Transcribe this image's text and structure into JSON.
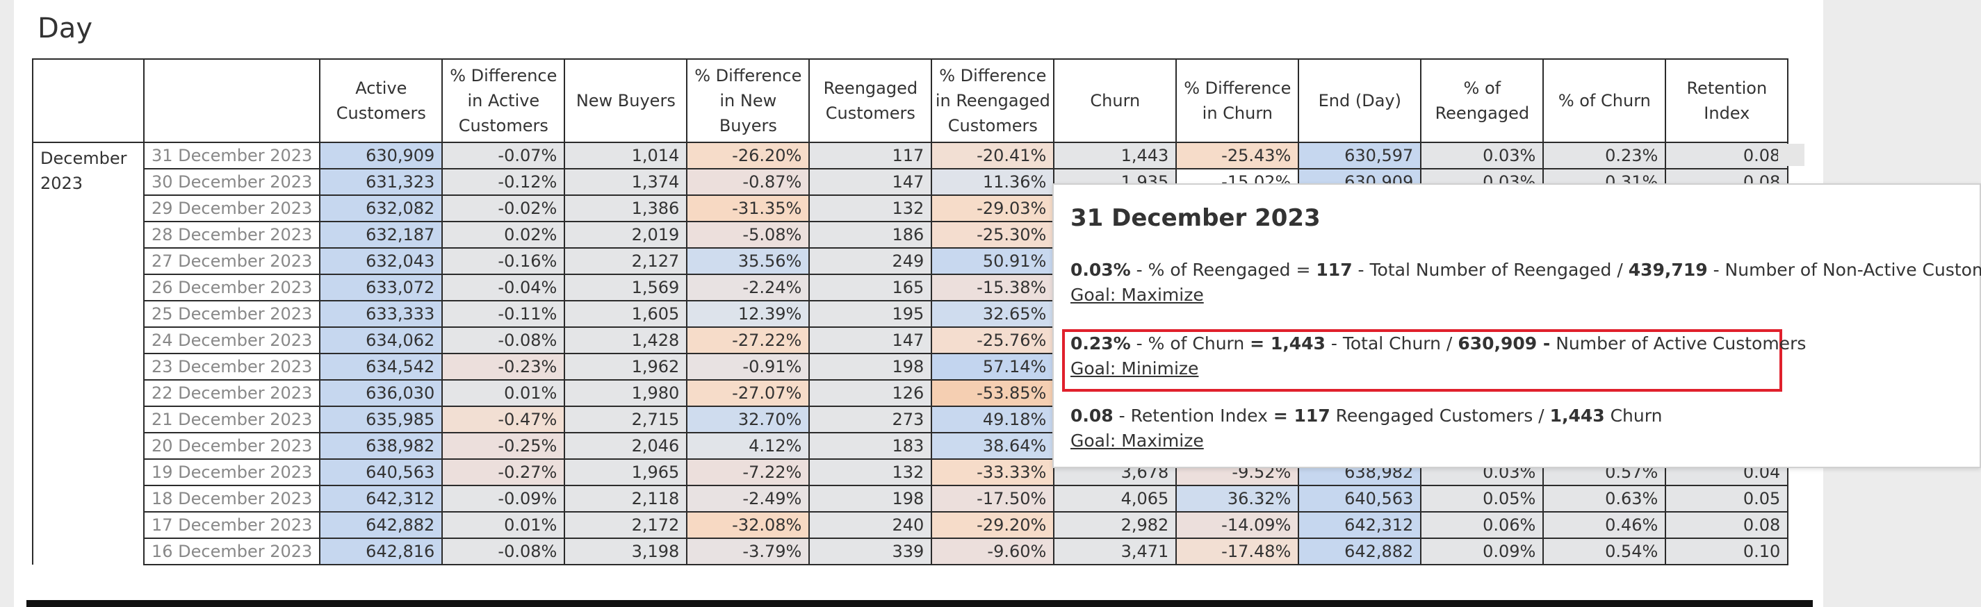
{
  "view": {
    "title": "Day"
  },
  "month_label": "December 2023",
  "headers": [
    "Active Customers",
    "% Difference in Active Customers",
    "New Buyers",
    "% Difference in New Buyers",
    "Reengaged Customers",
    "% Difference in Reengaged Customers",
    "Churn",
    "% Difference in Churn",
    "End (Day)",
    "% of Reengaged",
    "% of Churn",
    "Retention Index"
  ],
  "rows": [
    {
      "date": "31 December 2023",
      "cells": [
        "630,909",
        "-0.07%",
        "1,014",
        "-26.20%",
        "117",
        "-20.41%",
        "1,443",
        "-25.43%",
        "630,597",
        "0.03%",
        "0.23%",
        "0.08"
      ],
      "tints": [
        "",
        "",
        "",
        "#f6dcc9",
        "",
        "#f2dfd3",
        "",
        "#f6dcc9",
        "",
        "",
        "",
        ""
      ]
    },
    {
      "date": "30 December 2023",
      "cells": [
        "631,323",
        "-0.12%",
        "1,374",
        "-0.87%",
        "147",
        "11.36%",
        "1,935",
        "-15.02%",
        "630,909",
        "0.03%",
        "0.31%",
        "0.08"
      ],
      "tints": [
        "",
        "",
        "",
        "#ecdfdc",
        "",
        "#dfe3ea",
        "",
        "",
        "",
        "",
        "",
        ""
      ]
    },
    {
      "date": "29 December 2023",
      "cells": [
        "632,082",
        "-0.02%",
        "1,386",
        "-31.35%",
        "132",
        "-29.03%",
        "",
        "",
        "",
        "",
        "",
        ""
      ],
      "tints": [
        "",
        "",
        "",
        "#f7d9c3",
        "",
        "#f6dcc9",
        "",
        "",
        "",
        "",
        "",
        ""
      ]
    },
    {
      "date": "28 December 2023",
      "cells": [
        "632,187",
        "0.02%",
        "2,019",
        "-5.08%",
        "186",
        "-25.30%",
        "",
        "",
        "",
        "",
        "",
        ""
      ],
      "tints": [
        "",
        "",
        "",
        "#ecdfdc",
        "",
        "#f4ddcf",
        "",
        "",
        "",
        "",
        "",
        ""
      ]
    },
    {
      "date": "27 December 2023",
      "cells": [
        "632,043",
        "-0.16%",
        "2,127",
        "35.56%",
        "249",
        "50.91%",
        "",
        "",
        "",
        "",
        "",
        ""
      ],
      "tints": [
        "",
        "",
        "",
        "#cfdcee",
        "",
        "#c8d8ef",
        "",
        "",
        "",
        "",
        "",
        ""
      ]
    },
    {
      "date": "26 December 2023",
      "cells": [
        "633,072",
        "-0.04%",
        "1,569",
        "-2.24%",
        "165",
        "-15.38%",
        "",
        "",
        "",
        "",
        "",
        ""
      ],
      "tints": [
        "",
        "",
        "",
        "#e8e2e2",
        "",
        "#ecdfdc",
        "",
        "",
        "",
        "",
        "",
        ""
      ]
    },
    {
      "date": "25 December 2023",
      "cells": [
        "633,333",
        "-0.11%",
        "1,605",
        "12.39%",
        "195",
        "32.65%",
        "",
        "",
        "",
        "",
        "",
        ""
      ],
      "tints": [
        "",
        "",
        "",
        "#dde3eb",
        "",
        "#cfdcee",
        "",
        "",
        "",
        "",
        "",
        ""
      ]
    },
    {
      "date": "24 December 2023",
      "cells": [
        "634,062",
        "-0.08%",
        "1,428",
        "-27.22%",
        "147",
        "-25.76%",
        "",
        "",
        "",
        "",
        "",
        ""
      ],
      "tints": [
        "",
        "",
        "",
        "#f6dcc9",
        "",
        "#f4ddcf",
        "",
        "",
        "",
        "",
        "",
        ""
      ]
    },
    {
      "date": "23 December 2023",
      "cells": [
        "634,542",
        "-0.23%",
        "1,962",
        "-0.91%",
        "198",
        "57.14%",
        "",
        "",
        "",
        "",
        "",
        ""
      ],
      "tints": [
        "",
        "#ecdfdc",
        "",
        "#e8e2e2",
        "",
        "#c3d5ef",
        "",
        "",
        "",
        "",
        "",
        ""
      ]
    },
    {
      "date": "22 December 2023",
      "cells": [
        "636,030",
        "0.01%",
        "1,980",
        "-27.07%",
        "126",
        "-53.85%",
        "",
        "",
        "",
        "",
        "",
        ""
      ],
      "tints": [
        "",
        "",
        "",
        "#f6dcc9",
        "",
        "#f5cfb2",
        "",
        "",
        "",
        "",
        "",
        ""
      ]
    },
    {
      "date": "21 December 2023",
      "cells": [
        "635,985",
        "-0.47%",
        "2,715",
        "32.70%",
        "273",
        "49.18%",
        "",
        "",
        "",
        "",
        "",
        ""
      ],
      "tints": [
        "",
        "#f2dfd3",
        "",
        "#cfdcee",
        "",
        "#c8d8ef",
        "",
        "",
        "",
        "",
        "",
        ""
      ]
    },
    {
      "date": "20 December 2023",
      "cells": [
        "638,982",
        "-0.25%",
        "2,046",
        "4.12%",
        "183",
        "38.64%",
        "",
        "",
        "",
        "",
        "",
        ""
      ],
      "tints": [
        "",
        "#ecdfdc",
        "",
        "#e1e4e9",
        "",
        "#cbdaef",
        "",
        "",
        "",
        "",
        "",
        ""
      ]
    },
    {
      "date": "19 December 2023",
      "cells": [
        "640,563",
        "-0.27%",
        "1,965",
        "-7.22%",
        "132",
        "-33.33%",
        "3,678",
        "-9.52%",
        "638,982",
        "0.03%",
        "0.57%",
        "0.04"
      ],
      "tints": [
        "",
        "#ecdfdc",
        "",
        "#ecdfdc",
        "",
        "#f6dcc9",
        "",
        "#ecdfdc",
        "",
        "",
        "",
        ""
      ]
    },
    {
      "date": "18 December 2023",
      "cells": [
        "642,312",
        "-0.09%",
        "2,118",
        "-2.49%",
        "198",
        "-17.50%",
        "4,065",
        "36.32%",
        "640,563",
        "0.05%",
        "0.63%",
        "0.05"
      ],
      "tints": [
        "",
        "",
        "",
        "#e8e2e2",
        "",
        "#ecdfdc",
        "",
        "#cfdcee",
        "",
        "",
        "",
        ""
      ]
    },
    {
      "date": "17 December 2023",
      "cells": [
        "642,882",
        "0.01%",
        "2,172",
        "-32.08%",
        "240",
        "-29.20%",
        "2,982",
        "-14.09%",
        "642,312",
        "0.06%",
        "0.46%",
        "0.08"
      ],
      "tints": [
        "",
        "",
        "",
        "#f7d9c3",
        "",
        "#f6dcc9",
        "",
        "#ecdfdc",
        "",
        "",
        "",
        ""
      ]
    },
    {
      "date": "16 December 2023",
      "cells": [
        "642,816",
        "-0.08%",
        "3,198",
        "-3.79%",
        "339",
        "-9.60%",
        "3,471",
        "-17.48%",
        "642,882",
        "0.09%",
        "0.54%",
        "0.10"
      ],
      "tints": [
        "",
        "",
        "",
        "#e8e2e2",
        "",
        "#ecdfdc",
        "",
        "#f2dfd3",
        "",
        "",
        "",
        ""
      ]
    }
  ],
  "tooltip": {
    "title": "31 December 2023",
    "reengaged": {
      "value": "0.03%",
      "label": " - % of Reengaged = ",
      "numerator": "117",
      "mid": " - Total Number of Reengaged / ",
      "denominator": "439,719",
      "tail": " - Number of Non-Active Customers",
      "goal": "Goal: Maximize"
    },
    "churn": {
      "value": "0.23%",
      "label": " - % of Churn ",
      "eq": "= 1,443",
      "mid": " - Total Churn / ",
      "denominator": "630,909 -",
      "tail": " Number of Active Customers",
      "goal": "Goal: Minimize"
    },
    "retention": {
      "value": "0.08",
      "label": " - Retention Index ",
      "eq": "= 117",
      "mid": " Reengaged Customers / ",
      "denominator": "1,443",
      "tail": " Churn",
      "goal": "Goal: Maximize"
    }
  },
  "colors": {
    "active_fill": "#c6d7ef",
    "neutral_fill": "#e4e5e7",
    "highlight": "#e0202c"
  }
}
